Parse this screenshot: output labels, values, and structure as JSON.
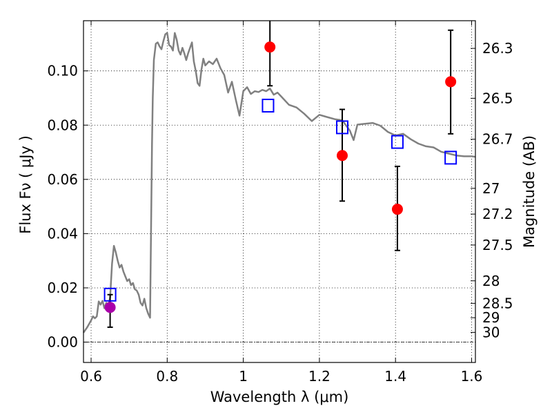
{
  "chart_data": {
    "type": "scatter",
    "title": "",
    "xlabel": "Wavelength  λ (μm)",
    "ylabel": "Flux  Fν  ( μJy )",
    "ylabel_right": "Magnitude (AB)",
    "xlim": [
      0.58,
      1.61
    ],
    "ylim": [
      -0.0075,
      0.1185
    ],
    "grid": true,
    "x_ticks": [
      0.6,
      0.8,
      1.0,
      1.2,
      1.4,
      1.6
    ],
    "x_tick_labels": [
      "0.6",
      "0.8",
      "1",
      "1.2",
      "1.4",
      "1.6"
    ],
    "y_ticks": [
      0.0,
      0.02,
      0.04,
      0.06,
      0.08,
      0.1
    ],
    "y_tick_labels": [
      "0.00",
      "0.02",
      "0.04",
      "0.06",
      "0.08",
      "0.10"
    ],
    "right_axis": {
      "ticks": [
        {
          "label": "26.3",
          "flux": 0.1083
        },
        {
          "label": "26.5",
          "flux": 0.0899
        },
        {
          "label": "26.7",
          "flux": 0.0748
        },
        {
          "label": "27",
          "flux": 0.0567
        },
        {
          "label": "27.2",
          "flux": 0.0472
        },
        {
          "label": "27.5",
          "flux": 0.0358
        },
        {
          "label": "28",
          "flux": 0.0226
        },
        {
          "label": "28.5",
          "flux": 0.0143
        },
        {
          "label": "29",
          "flux": 0.009
        },
        {
          "label": "30",
          "flux": 0.0036
        }
      ]
    },
    "zero_line": 0.0,
    "series": [
      {
        "kind": "model_spectrum",
        "color": "#808080",
        "x": [
          0.58,
          0.59,
          0.6,
          0.605,
          0.61,
          0.615,
          0.62,
          0.625,
          0.63,
          0.635,
          0.64,
          0.645,
          0.65,
          0.655,
          0.66,
          0.665,
          0.67,
          0.675,
          0.68,
          0.685,
          0.69,
          0.695,
          0.7,
          0.705,
          0.71,
          0.715,
          0.72,
          0.725,
          0.73,
          0.735,
          0.74,
          0.745,
          0.75,
          0.755,
          0.76,
          0.762,
          0.765,
          0.77,
          0.775,
          0.78,
          0.785,
          0.79,
          0.795,
          0.8,
          0.805,
          0.81,
          0.815,
          0.82,
          0.825,
          0.83,
          0.835,
          0.84,
          0.845,
          0.85,
          0.855,
          0.86,
          0.865,
          0.87,
          0.875,
          0.88,
          0.885,
          0.89,
          0.895,
          0.9,
          0.91,
          0.92,
          0.93,
          0.94,
          0.95,
          0.96,
          0.97,
          0.98,
          0.99,
          1.0,
          1.01,
          1.02,
          1.03,
          1.04,
          1.05,
          1.06,
          1.07,
          1.08,
          1.09,
          1.1,
          1.12,
          1.14,
          1.16,
          1.18,
          1.2,
          1.22,
          1.24,
          1.26,
          1.28,
          1.29,
          1.3,
          1.32,
          1.34,
          1.36,
          1.38,
          1.4,
          1.42,
          1.44,
          1.46,
          1.48,
          1.5,
          1.52,
          1.54,
          1.56,
          1.58,
          1.6,
          1.61
        ],
        "y": [
          0.0035,
          0.0055,
          0.008,
          0.0095,
          0.0088,
          0.0095,
          0.015,
          0.0138,
          0.0152,
          0.0125,
          0.0145,
          0.013,
          0.0165,
          0.029,
          0.0355,
          0.033,
          0.03,
          0.0275,
          0.0285,
          0.026,
          0.0242,
          0.0225,
          0.0232,
          0.021,
          0.0218,
          0.0195,
          0.019,
          0.0175,
          0.0145,
          0.0135,
          0.016,
          0.0125,
          0.0105,
          0.009,
          0.073,
          0.09,
          0.104,
          0.11,
          0.1105,
          0.109,
          0.108,
          0.111,
          0.1135,
          0.114,
          0.1095,
          0.109,
          0.1075,
          0.114,
          0.1115,
          0.1075,
          0.106,
          0.1085,
          0.1065,
          0.104,
          0.1065,
          0.1085,
          0.1105,
          0.1035,
          0.1,
          0.0955,
          0.0945,
          0.1005,
          0.1045,
          0.102,
          0.1035,
          0.1025,
          0.1045,
          0.101,
          0.0985,
          0.092,
          0.096,
          0.0895,
          0.0835,
          0.0925,
          0.094,
          0.0915,
          0.0925,
          0.0922,
          0.093,
          0.0925,
          0.0935,
          0.0912,
          0.092,
          0.0905,
          0.0875,
          0.0865,
          0.0842,
          0.0815,
          0.0838,
          0.083,
          0.0822,
          0.0818,
          0.078,
          0.0745,
          0.0802,
          0.0805,
          0.0808,
          0.0798,
          0.0775,
          0.0762,
          0.0768,
          0.0748,
          0.0732,
          0.0722,
          0.0718,
          0.0702,
          0.0695,
          0.0688,
          0.0685,
          0.0685,
          0.0683
        ]
      },
      {
        "kind": "model_photometry",
        "marker": "open-square",
        "color": "#0000ff",
        "x": [
          0.65,
          1.065,
          1.26,
          1.405,
          1.545
        ],
        "y": [
          0.0175,
          0.0872,
          0.0792,
          0.0738,
          0.068
        ]
      },
      {
        "kind": "observed",
        "marker": "filled-circle",
        "color": "#ff0000",
        "x": [
          1.07,
          1.26,
          1.405,
          1.545
        ],
        "y": [
          0.1088,
          0.0688,
          0.049,
          0.096
        ],
        "yerr_low": [
          0.0945,
          0.052,
          0.0338,
          0.0768
        ],
        "yerr_high": [
          0.1185,
          0.0858,
          0.0648,
          0.115
        ]
      },
      {
        "kind": "observed",
        "marker": "filled-circle",
        "color": "#aa00aa",
        "x": [
          0.65
        ],
        "y": [
          0.0128
        ],
        "yerr_low": [
          0.0055
        ],
        "yerr_high": [
          0.0175
        ]
      }
    ]
  }
}
